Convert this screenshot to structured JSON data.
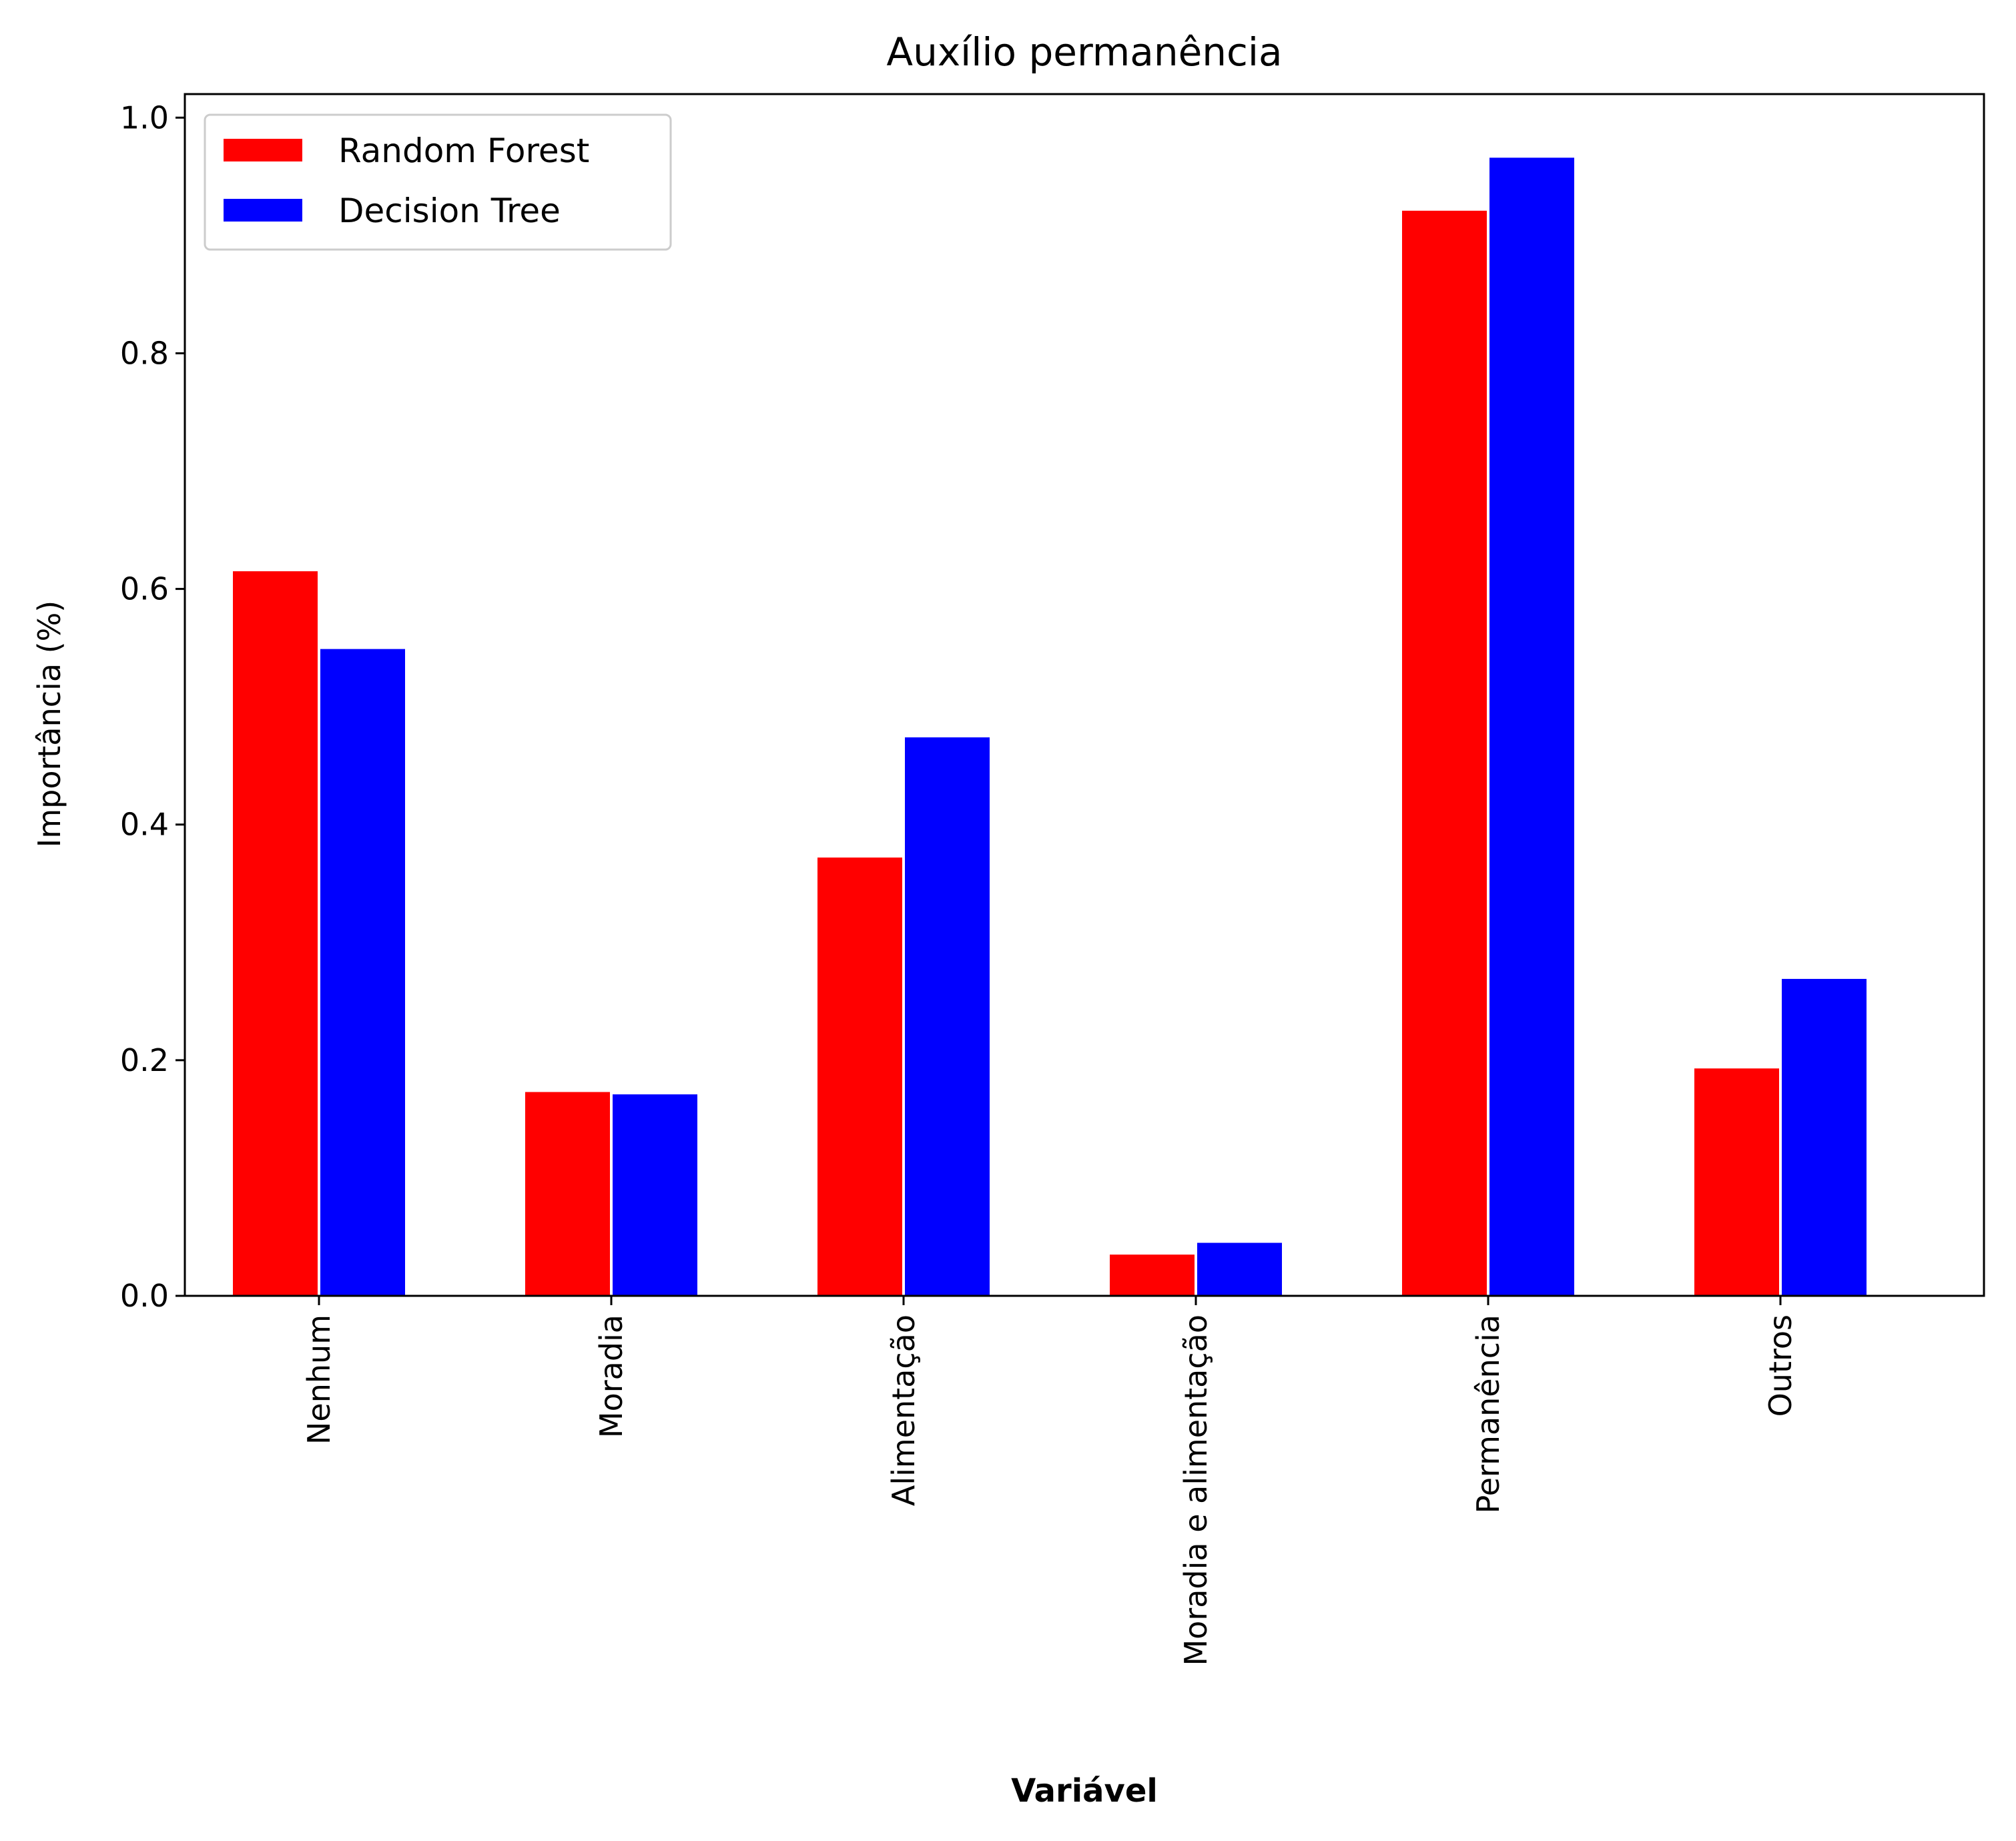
{
  "chart_data": {
    "type": "bar",
    "title": "Auxílio permanência",
    "xlabel": "Variável",
    "ylabel": "Importância (%)",
    "categories": [
      "Nenhum",
      "Moradia",
      "Alimentação",
      "Moradia e alimentação",
      "Permanência",
      "Outros"
    ],
    "series": [
      {
        "name": "Random Forest",
        "color": "#ff0000",
        "values": [
          0.615,
          0.173,
          0.372,
          0.035,
          0.921,
          0.193
        ]
      },
      {
        "name": "Decision Tree",
        "color": "#0000ff",
        "values": [
          0.549,
          0.171,
          0.474,
          0.045,
          0.966,
          0.269
        ]
      }
    ],
    "ylim": [
      0,
      1.02
    ],
    "yticks": [
      "0.0",
      "0.2",
      "0.4",
      "0.6",
      "0.8",
      "1.0"
    ],
    "grid": false,
    "legend": "upper-left",
    "xtick_rotation": "vertical"
  }
}
